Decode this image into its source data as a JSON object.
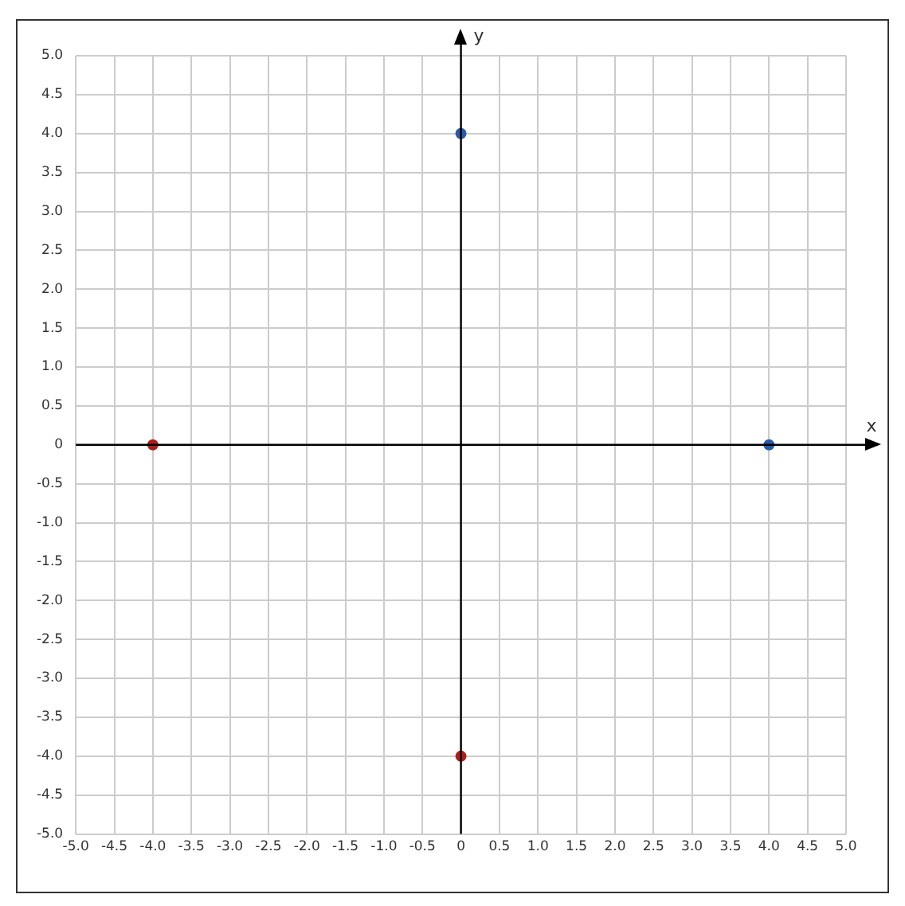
{
  "chart_data": {
    "type": "scatter",
    "xlabel": "x",
    "ylabel": "y",
    "series": [
      {
        "color": "#2b5aa8",
        "x": [
          0,
          4
        ],
        "values": [
          4,
          0
        ]
      },
      {
        "color": "#b01c1c",
        "x": [
          -4,
          0
        ],
        "values": [
          0,
          -4
        ]
      }
    ],
    "xlim": [
      -5,
      5
    ],
    "ylim": [
      -5,
      5
    ],
    "xticks": [
      {
        "value": -5,
        "label": "-5.0"
      },
      -4.5,
      {
        "value": -4,
        "label": "-4.0"
      },
      -3.5,
      {
        "value": -3,
        "label": "-3.0"
      },
      -2.5,
      {
        "value": -2,
        "label": "-2.0"
      },
      -1.5,
      {
        "value": -1,
        "label": "-1.0"
      },
      -0.5,
      0,
      0.5,
      {
        "value": 1,
        "label": "1.0"
      },
      1.5,
      {
        "value": 2,
        "label": "2.0"
      },
      2.5,
      {
        "value": 3,
        "label": "3.0"
      },
      3.5,
      {
        "value": 4,
        "label": "4.0"
      },
      4.5,
      {
        "value": 5,
        "label": "5.0"
      }
    ],
    "yticks": [
      {
        "value": -5,
        "label": "-5.0"
      },
      -4.5,
      {
        "value": -4,
        "label": "-4.0"
      },
      -3.5,
      {
        "value": -3,
        "label": "-3.0"
      },
      -2.5,
      {
        "value": -2,
        "label": "-2.0"
      },
      -1.5,
      {
        "value": -1,
        "label": "-1.0"
      },
      -0.5,
      0,
      0.5,
      {
        "value": 1,
        "label": "1.0"
      },
      1.5,
      {
        "value": 2,
        "label": "2.0"
      },
      2.5,
      {
        "value": 3,
        "label": "3.0"
      },
      3.5,
      {
        "value": 4,
        "label": "4.0"
      },
      4.5,
      {
        "value": 5,
        "label": "5.0"
      }
    ],
    "grid": true,
    "legend": false,
    "marker": "circle"
  }
}
